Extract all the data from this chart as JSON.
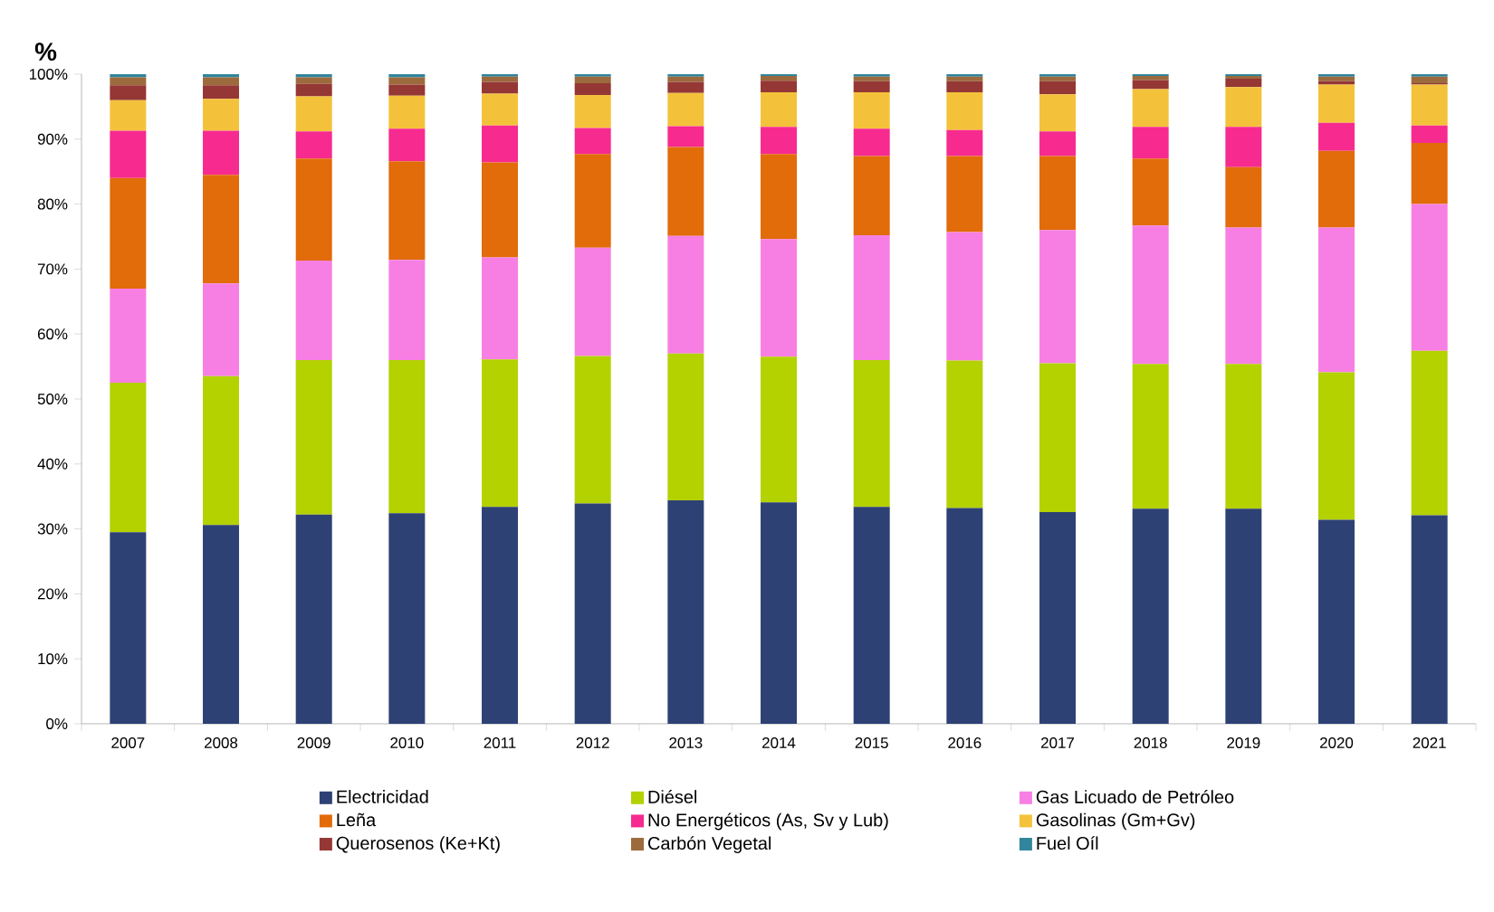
{
  "chart_data": {
    "type": "bar",
    "stacked": true,
    "ylabel": "%",
    "legend": "bottom",
    "categories": [
      "2007",
      "2008",
      "2009",
      "2010",
      "2011",
      "2012",
      "2013",
      "2014",
      "2015",
      "2016",
      "2017",
      "2018",
      "2019",
      "2020",
      "2021"
    ],
    "ylim": [
      0,
      100
    ],
    "yticks": [
      {
        "value": 0,
        "label": "0%"
      },
      {
        "value": 10,
        "label": "10%"
      },
      {
        "value": 20,
        "label": "20%"
      },
      {
        "value": 30,
        "label": "30%"
      },
      {
        "value": 40,
        "label": "40%"
      },
      {
        "value": 50,
        "label": "50%"
      },
      {
        "value": 60,
        "label": "60%"
      },
      {
        "value": 70,
        "label": "70%"
      },
      {
        "value": 80,
        "label": "80%"
      },
      {
        "value": 90,
        "label": "90%"
      },
      {
        "value": 100,
        "label": "100%"
      }
    ],
    "series": [
      {
        "name": "Electricidad",
        "color": "#2e4175",
        "values": [
          29.5,
          30.6,
          32.2,
          32.4,
          33.4,
          33.9,
          34.4,
          34.1,
          33.4,
          33.2,
          32.6,
          33.1,
          33.1,
          31.4,
          32.1
        ]
      },
      {
        "name": "Diésel",
        "color": "#b4d100",
        "values": [
          23.0,
          22.9,
          23.8,
          23.6,
          22.7,
          22.7,
          22.6,
          22.4,
          22.6,
          22.7,
          22.9,
          22.3,
          22.3,
          22.7,
          25.3
        ]
      },
      {
        "name": "Gas Licuado de Petróleo",
        "color": "#f77fe3",
        "values": [
          14.5,
          14.3,
          15.3,
          15.4,
          15.7,
          16.7,
          18.1,
          18.1,
          19.2,
          19.8,
          20.5,
          21.3,
          21.0,
          22.3,
          22.6
        ]
      },
      {
        "name": "Leña",
        "color": "#e26b0a",
        "values": [
          17.0,
          16.7,
          15.7,
          15.2,
          14.6,
          14.4,
          13.7,
          13.1,
          12.2,
          11.7,
          11.4,
          10.3,
          9.3,
          11.8,
          9.4
        ]
      },
      {
        "name": "No Energéticos (As, Sv y Lub)",
        "color": "#f72a8f",
        "values": [
          7.3,
          6.8,
          4.2,
          5.0,
          5.7,
          4.0,
          3.2,
          4.2,
          4.2,
          4.0,
          3.8,
          4.9,
          6.2,
          4.3,
          2.7
        ]
      },
      {
        "name": "Gasolinas (Gm+Gv)",
        "color": "#f4c23a",
        "values": [
          4.7,
          4.9,
          5.4,
          5.1,
          4.9,
          5.1,
          5.1,
          5.3,
          5.6,
          5.8,
          5.7,
          5.8,
          6.1,
          5.9,
          6.3
        ]
      },
      {
        "name": "Querosenos (Ke+Kt)",
        "color": "#953735",
        "values": [
          2.3,
          2.1,
          1.9,
          1.7,
          1.8,
          1.8,
          1.7,
          1.8,
          1.7,
          1.7,
          2.0,
          1.4,
          1.3,
          0.5,
          0.2
        ]
      },
      {
        "name": "Carbón Vegetal",
        "color": "#9c6a3c",
        "values": [
          1.2,
          1.2,
          1.0,
          1.1,
          0.8,
          1.0,
          0.8,
          0.7,
          0.7,
          0.7,
          0.7,
          0.6,
          0.4,
          0.7,
          1.0
        ]
      },
      {
        "name": "Fuel Oíl",
        "color": "#31859c",
        "values": [
          0.5,
          0.5,
          0.5,
          0.5,
          0.4,
          0.4,
          0.4,
          0.3,
          0.4,
          0.4,
          0.4,
          0.3,
          0.3,
          0.4,
          0.4
        ]
      }
    ]
  }
}
